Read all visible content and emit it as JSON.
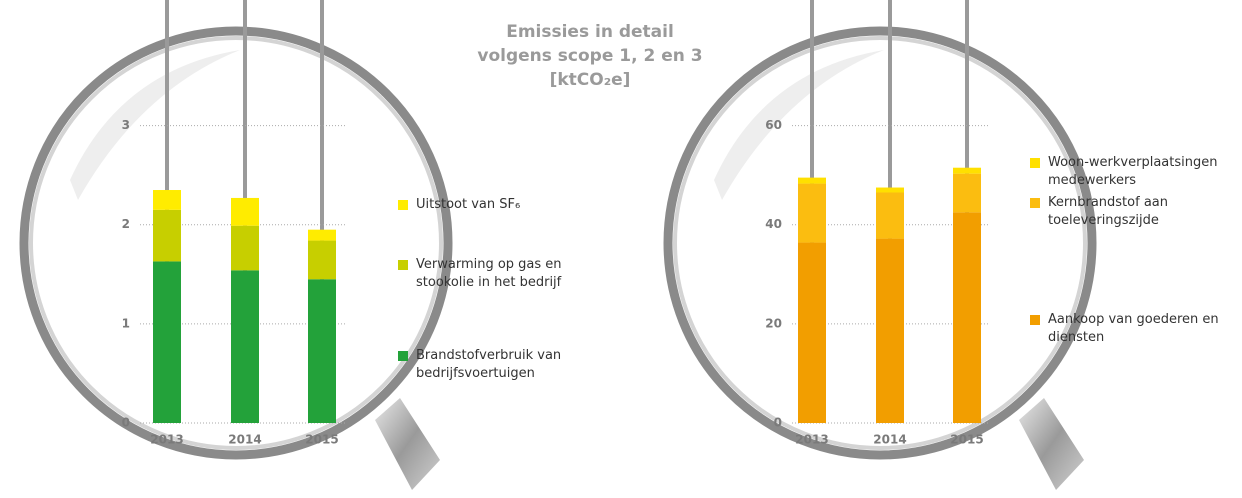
{
  "title": "Emissies in detail volgens scope 1, 2 en 3 [ktCO₂e]",
  "chart_data": [
    {
      "type": "stacked-bar",
      "categories": [
        "2013",
        "2014",
        "2015"
      ],
      "series": [
        {
          "name": "Brandstofverbruik van bedrijfsvoertuigen",
          "color": "#23a23a",
          "values": [
            1.63,
            1.54,
            1.45
          ]
        },
        {
          "name": "Verwarming op gas en stookolie in het bedrijf",
          "color": "#c7cf00",
          "values": [
            0.52,
            0.45,
            0.39
          ]
        },
        {
          "name": "Uitstoot van SF₆",
          "color": "#ffec00",
          "values": [
            0.2,
            0.28,
            0.11
          ]
        }
      ],
      "ylim": [
        0,
        3.5
      ],
      "yticks": [
        0,
        1,
        2,
        3
      ],
      "grid": true
    },
    {
      "type": "stacked-bar",
      "categories": [
        "2013",
        "2014",
        "2015"
      ],
      "series": [
        {
          "name": "Aankoop van goederen en diensten",
          "color": "#f29e00",
          "values": [
            36.4,
            37.2,
            42.5
          ]
        },
        {
          "name": "Kernbrandstof aan toeleveringszijde",
          "color": "#fbbd10",
          "values": [
            11.9,
            9.3,
            7.8
          ]
        },
        {
          "name": "Woon-werkverplaatsingen medewerkers",
          "color": "#ffe000",
          "values": [
            1.2,
            1.0,
            1.2
          ]
        }
      ],
      "ylim": [
        0,
        70
      ],
      "yticks": [
        0,
        20,
        40,
        60
      ],
      "grid": true
    }
  ]
}
